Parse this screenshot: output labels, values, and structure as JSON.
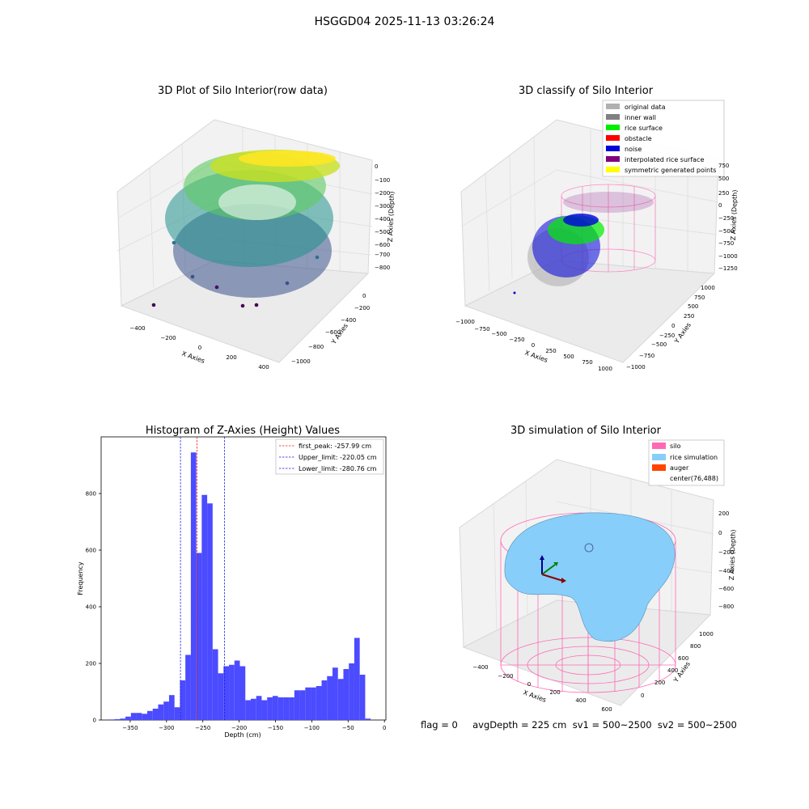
{
  "figure": {
    "suptitle": "HSGGD04 2025-11-13 03:26:24",
    "status_line": "flag = 0     avgDepth = 225 cm  sv1 = 500~2500  sv2 = 500~2500"
  },
  "colors": {
    "hist_bar": "#4b4bff",
    "first_peak_line": "#e02020",
    "limit_line": "#1a1aee",
    "silo": "#ff69b4",
    "rice_simulation": "#87cefa",
    "auger": "#ff4500",
    "original_data": "#b0b0b0",
    "inner_wall": "#808080",
    "rice_surface": "#00ee00",
    "obstacle": "#ff0000",
    "noise": "#0000dd",
    "interpolated_rice_surface": "#800080",
    "symmetric_generated_points": "#ffff00"
  },
  "chart_data": [
    {
      "type": "scatter",
      "title": "3D Plot of Silo Interior(row data)",
      "xlabel": "X Axies",
      "ylabel": "Y Axies",
      "zlabel": "Z Axies (Depth)",
      "x_ticks": [
        "−400",
        "−200",
        "0",
        "200",
        "400"
      ],
      "y_ticks": [
        "−1000",
        "−800",
        "−600",
        "−400",
        "−200",
        "0"
      ],
      "z_ticks": [
        "0",
        "−100",
        "−200",
        "−300",
        "−400",
        "−500",
        "−600",
        "−700",
        "−800"
      ],
      "colormap": "viridis"
    },
    {
      "type": "scatter",
      "title": "3D classify of Silo Interior",
      "xlabel": "X Axies",
      "ylabel": "Y Axies",
      "zlabel": "Z Axies (Depth)",
      "x_ticks": [
        "−1000",
        "−750",
        "−500",
        "−250",
        "0",
        "250",
        "500",
        "750",
        "1000"
      ],
      "y_ticks": [
        "−1000",
        "−750",
        "−500",
        "−250",
        "0",
        "250",
        "500",
        "750",
        "1000"
      ],
      "z_ticks": [
        "750",
        "500",
        "250",
        "0",
        "−250",
        "−500",
        "−750",
        "−1000",
        "−1250"
      ],
      "legend": [
        "original data",
        "inner wall",
        "rice surface",
        "obstacle",
        "noise",
        "interpolated rice surface",
        "symmetric generated points"
      ],
      "legend_placement": "top-right"
    },
    {
      "type": "bar",
      "title": "Histogram of Z-Axies (Height) Values",
      "xlabel": "Depth (cm)",
      "ylabel": "Frequency",
      "xlim": [
        -390,
        2
      ],
      "ylim": [
        0,
        1000
      ],
      "x_ticks": [
        -350,
        -300,
        -250,
        -200,
        -150,
        -100,
        -50,
        0
      ],
      "x_tick_labels": [
        "−350",
        "−300",
        "−250",
        "−200",
        "−150",
        "−100",
        "−50",
        "0"
      ],
      "y_ticks": [
        0,
        200,
        400,
        600,
        800
      ],
      "y_tick_labels": [
        "0",
        "200",
        "400",
        "600",
        "800"
      ],
      "bin_start": -379,
      "bin_width": 7.5,
      "values": [
        2,
        3,
        5,
        12,
        25,
        25,
        22,
        32,
        40,
        55,
        65,
        88,
        45,
        140,
        230,
        945,
        590,
        795,
        765,
        250,
        165,
        190,
        195,
        210,
        190,
        70,
        75,
        85,
        70,
        80,
        85,
        80,
        80,
        80,
        105,
        105,
        115,
        115,
        120,
        140,
        155,
        185,
        145,
        180,
        200,
        290,
        160,
        5
      ],
      "vlines": [
        {
          "x": -257.99,
          "style": "first_peak",
          "label": "first_peak: -257.99 cm"
        },
        {
          "x": -220.05,
          "style": "limit",
          "label": "Upper_limit: -220.05 cm"
        },
        {
          "x": -280.76,
          "style": "limit",
          "label": "Lower_limit: -280.76 cm"
        }
      ],
      "legend_placement": "top-right"
    },
    {
      "type": "surface",
      "title": "3D simulation of Silo Interior",
      "xlabel": "X Axies",
      "ylabel": "Y Axies",
      "zlabel": "Z Axies (Depth)",
      "x_ticks": [
        "−400",
        "−200",
        "0",
        "200",
        "400",
        "600"
      ],
      "y_ticks": [
        "0",
        "200",
        "400",
        "600",
        "800",
        "1000"
      ],
      "z_ticks": [
        "200",
        "0",
        "−200",
        "−400",
        "−600",
        "−800"
      ],
      "legend": [
        "silo",
        "rice simulation",
        "auger",
        "center(76,488)"
      ],
      "legend_placement": "top-right"
    }
  ]
}
